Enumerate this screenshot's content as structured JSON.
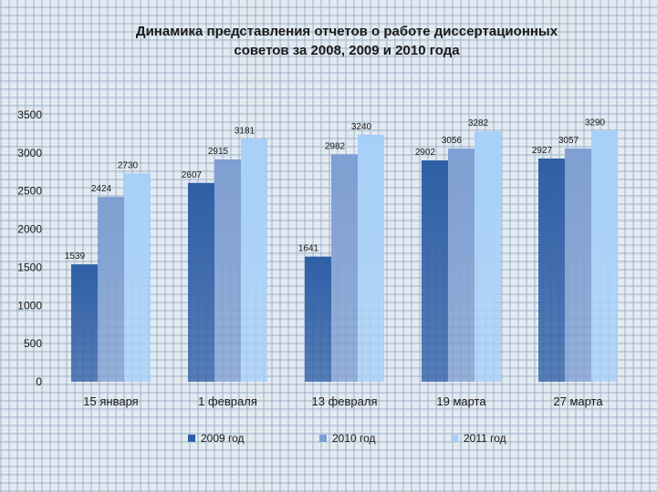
{
  "title_lines": [
    "Динамика представления отчетов о работе диссертационных",
    "советов за 2008, 2009 и 2010 года"
  ],
  "colors": {
    "series_1": "#2f5fa6",
    "series_2": "#7f9fd2",
    "series_3": "#a7d0f8"
  },
  "chart_data": {
    "type": "bar",
    "title": "Динамика представления отчетов о работе диссертационных советов за 2008, 2009 и 2010 года",
    "categories": [
      "15 января",
      "1 февраля",
      "13 февраля",
      "19 марта",
      "27 марта"
    ],
    "series": [
      {
        "name": "2009 год",
        "values": [
          1539,
          2607,
          1641,
          2902,
          2927
        ],
        "labels": [
          "1539",
          "2607",
          "1641",
          "2902",
          "2927"
        ]
      },
      {
        "name": "2010 год",
        "values": [
          2424,
          2915,
          2982,
          3056,
          3057
        ],
        "labels": [
          "2424",
          "2915",
          "2982",
          "3056",
          "3057"
        ]
      },
      {
        "name": "2011 год",
        "values": [
          2730,
          3181,
          3240,
          3282,
          3290
        ],
        "labels": [
          "2730",
          "3181",
          "3240",
          "3282",
          "3290"
        ]
      }
    ],
    "ylim": [
      0,
      3500
    ],
    "yticks": [
      "0",
      "500",
      "1000",
      "1500",
      "2000",
      "2500",
      "3000",
      "3500"
    ],
    "grid": false,
    "legend_position": "bottom"
  }
}
